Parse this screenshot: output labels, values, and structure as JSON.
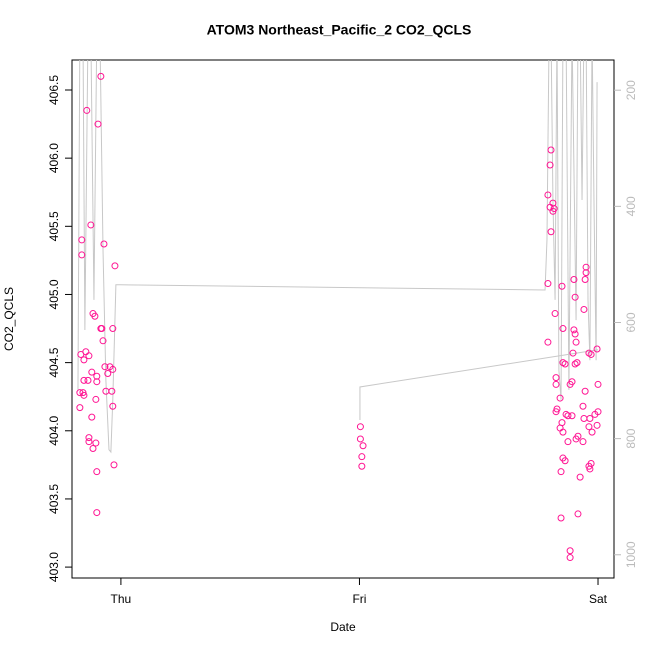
{
  "chart_data": {
    "type": "scatter",
    "title": "ATOM3 Northeast_Pacific_2 CO2_QCLS",
    "xlabel": "Date",
    "ylabel": "CO2_QCLS",
    "xlim": [
      -0.205,
      2.067
    ],
    "xticks": [
      {
        "value": 0,
        "label": "Thu"
      },
      {
        "value": 1,
        "label": "Fri"
      },
      {
        "value": 2,
        "label": "Sat"
      }
    ],
    "ylim": [
      402.92,
      406.72
    ],
    "yticks": [
      {
        "value": 403,
        "label": "403.0"
      },
      403.5,
      {
        "value": 404,
        "label": "404.0"
      },
      404.5,
      {
        "value": 405,
        "label": "405.0"
      },
      405.5,
      {
        "value": 406,
        "label": "406.0"
      },
      406.5
    ],
    "y2lim": [
      1040,
      148
    ],
    "y2ticks": [
      200,
      400,
      600,
      800,
      1000
    ],
    "y2color": "#bbbbbb",
    "series": [
      {
        "type": "scatter",
        "color": "#ff1493",
        "x": [
          -0.084,
          -0.143,
          -0.096,
          -0.126,
          -0.164,
          -0.071,
          -0.164,
          -0.025,
          -0.117,
          -0.109,
          -0.084,
          -0.08,
          -0.034,
          -0.075,
          -0.147,
          -0.168,
          -0.134,
          -0.155,
          -0.046,
          -0.067,
          -0.034,
          -0.122,
          -0.055,
          -0.101,
          -0.101,
          -0.155,
          -0.138,
          -0.172,
          -0.159,
          -0.063,
          -0.038,
          -0.155,
          -0.105,
          -0.172,
          -0.034,
          -0.122,
          -0.134,
          -0.134,
          -0.117,
          -0.105,
          -0.029,
          -0.101,
          -0.101,
          1.004,
          1.004,
          1.015,
          1.01,
          1.01,
          1.803,
          1.799,
          1.79,
          1.799,
          1.811,
          1.816,
          1.811,
          1.803,
          1.79,
          1.849,
          1.899,
          1.95,
          1.95,
          1.946,
          1.904,
          1.941,
          1.82,
          1.853,
          1.899,
          1.904,
          1.908,
          1.79,
          1.962,
          1.971,
          1.895,
          1.996,
          1.853,
          1.862,
          1.904,
          1.912,
          1.824,
          1.891,
          1.824,
          2.0,
          1.946,
          1.841,
          1.883,
          1.828,
          1.824,
          1.866,
          1.937,
          1.987,
          1.874,
          1.891,
          2.0,
          1.849,
          1.941,
          1.966,
          1.841,
          1.996,
          1.962,
          1.853,
          1.975,
          1.916,
          1.908,
          1.874,
          1.937,
          1.853,
          1.862,
          1.971,
          1.962,
          1.966,
          1.845,
          1.925,
          1.916,
          1.845,
          1.883,
          1.883
        ],
        "values": [
          406.6,
          406.35,
          406.25,
          405.51,
          405.4,
          405.37,
          405.29,
          405.21,
          404.86,
          404.84,
          404.75,
          404.75,
          404.75,
          404.66,
          404.58,
          404.56,
          404.55,
          404.52,
          404.47,
          404.47,
          404.45,
          404.43,
          404.42,
          404.4,
          404.36,
          404.37,
          404.37,
          404.28,
          404.28,
          404.29,
          404.29,
          404.26,
          404.23,
          404.17,
          404.18,
          404.1,
          403.95,
          403.92,
          403.87,
          403.91,
          403.75,
          403.7,
          403.4,
          404.03,
          403.94,
          403.89,
          403.81,
          403.74,
          406.06,
          405.95,
          405.73,
          405.64,
          405.67,
          405.63,
          405.61,
          405.46,
          405.08,
          405.06,
          405.11,
          405.2,
          405.16,
          405.11,
          404.98,
          404.89,
          404.86,
          404.75,
          404.74,
          404.71,
          404.65,
          404.65,
          404.57,
          404.56,
          404.57,
          404.6,
          404.5,
          404.49,
          404.49,
          404.5,
          404.39,
          404.36,
          404.34,
          404.34,
          404.29,
          404.24,
          404.34,
          404.16,
          404.14,
          404.12,
          404.18,
          404.12,
          404.11,
          404.11,
          404.14,
          404.06,
          404.09,
          404.09,
          404.02,
          404.04,
          404.03,
          403.99,
          403.99,
          403.96,
          403.94,
          403.92,
          403.92,
          403.8,
          403.78,
          403.76,
          403.74,
          403.72,
          403.7,
          403.66,
          403.39,
          403.36,
          403.12,
          403.07
        ]
      },
      {
        "type": "line",
        "axis": "y2",
        "color": "#c8c8c8",
        "x": [
          -0.18,
          -0.172,
          -0.159,
          -0.151,
          -0.138,
          -0.126,
          -0.113,
          -0.101,
          -0.088,
          -0.075,
          -0.063,
          -0.05,
          -0.042,
          -0.034,
          -0.021,
          -0.004,
          1.778,
          1.786,
          1.795,
          1.803,
          1.811,
          1.82,
          1.828,
          1.836,
          1.845,
          1.853,
          1.866,
          1.878,
          1.891,
          1.908,
          1.916,
          1.925,
          1.933,
          1.941,
          1.95,
          1.958,
          1.966,
          1.975,
          1.983,
          1.992,
          1.996,
          null,
          1.002,
          1.002,
          2.0
        ],
        "values": [
          716,
          100,
          100,
          613,
          100,
          100,
          561,
          100,
          100,
          475,
          699,
          819,
          823,
          733,
          535,
          535,
          544,
          458,
          100,
          100,
          389,
          561,
          100,
          682,
          733,
          100,
          100,
          716,
          100,
          596,
          100,
          100,
          389,
          100,
          100,
          561,
          665,
          100,
          389,
          665,
          186,
          null,
          768,
          711,
          647
        ]
      }
    ]
  }
}
